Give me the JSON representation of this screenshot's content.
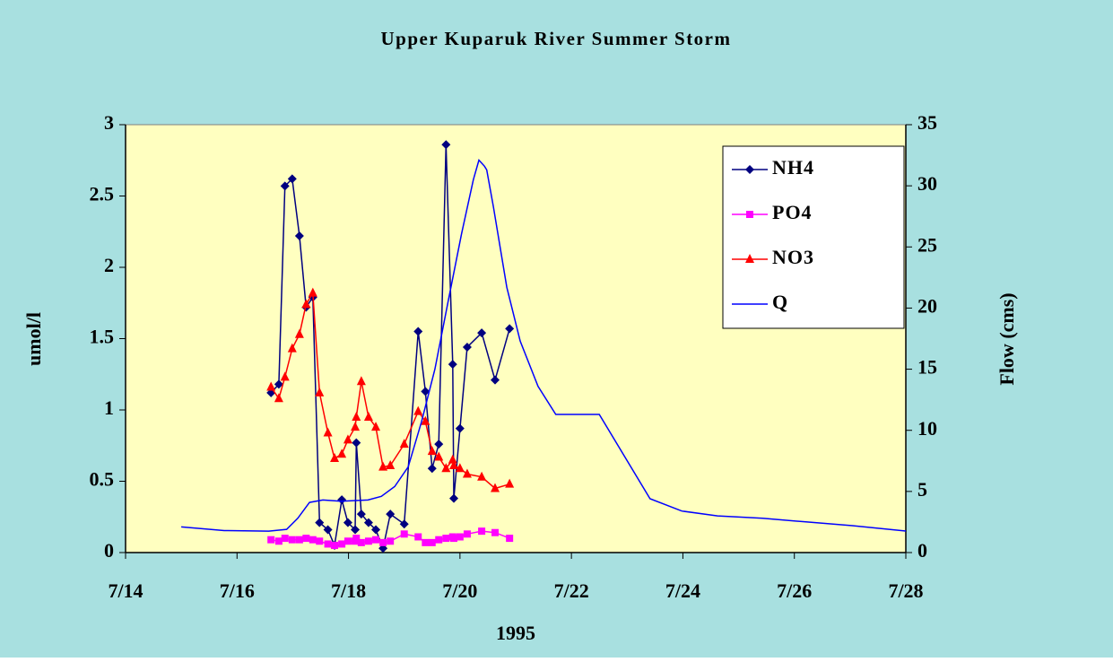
{
  "chart_data": {
    "type": "line",
    "title": "Upper Kuparuk River Summer Storm",
    "xlabel": "1995",
    "ylabel": "umol/l",
    "y2label": "Flow (cms)",
    "xlim": [
      14,
      28
    ],
    "xticks": [
      {
        "value": 14,
        "label": "7/14"
      },
      {
        "value": 16,
        "label": "7/16"
      },
      {
        "value": 18,
        "label": "7/18"
      },
      {
        "value": 20,
        "label": "7/20"
      },
      {
        "value": 22,
        "label": "7/22"
      },
      {
        "value": 24,
        "label": "7/24"
      },
      {
        "value": 26,
        "label": "7/26"
      },
      {
        "value": 28,
        "label": "7/28"
      }
    ],
    "ylim": [
      0,
      3
    ],
    "yticks": [
      0,
      0.5,
      1,
      1.5,
      2,
      2.5,
      3
    ],
    "y2lim": [
      0,
      35
    ],
    "y2ticks": [
      0,
      5,
      10,
      15,
      20,
      25,
      30,
      35
    ],
    "legend": "upper right",
    "background": "#a8e0e0",
    "plot_background": "#ffffc0",
    "series": [
      {
        "name": "NH4",
        "color": "#000080",
        "marker": "diamond",
        "x": [
          16.61,
          16.75,
          16.86,
          16.99,
          17.12,
          17.24,
          17.36,
          17.48,
          17.63,
          17.75,
          17.88,
          17.99,
          18.12,
          18.14,
          18.23,
          18.36,
          18.49,
          18.62,
          18.75,
          19.0,
          19.25,
          19.38,
          19.5,
          19.62,
          19.75,
          19.87,
          19.89,
          20.0,
          20.13,
          20.39,
          20.63,
          20.89
        ],
        "values": [
          1.12,
          1.18,
          2.57,
          2.62,
          2.22,
          1.72,
          1.79,
          0.21,
          0.16,
          0.05,
          0.37,
          0.21,
          0.16,
          0.77,
          0.27,
          0.21,
          0.16,
          0.03,
          0.27,
          0.2,
          1.55,
          1.13,
          0.59,
          0.76,
          2.86,
          1.32,
          0.38,
          0.87,
          1.44,
          1.54,
          1.21,
          1.57
        ]
      },
      {
        "name": "PO4",
        "color": "#ff00ff",
        "marker": "square",
        "x": [
          16.61,
          16.75,
          16.86,
          16.99,
          17.12,
          17.24,
          17.36,
          17.48,
          17.63,
          17.75,
          17.88,
          17.99,
          18.12,
          18.14,
          18.23,
          18.36,
          18.49,
          18.62,
          18.75,
          19.0,
          19.25,
          19.38,
          19.5,
          19.62,
          19.75,
          19.87,
          19.89,
          20.0,
          20.13,
          20.39,
          20.63,
          20.89
        ],
        "values": [
          0.09,
          0.08,
          0.1,
          0.09,
          0.09,
          0.1,
          0.09,
          0.08,
          0.06,
          0.05,
          0.06,
          0.08,
          0.08,
          0.1,
          0.07,
          0.08,
          0.09,
          0.07,
          0.08,
          0.13,
          0.11,
          0.07,
          0.07,
          0.09,
          0.1,
          0.11,
          0.1,
          0.11,
          0.13,
          0.15,
          0.14,
          0.1
        ]
      },
      {
        "name": "NO3",
        "color": "#ff0000",
        "marker": "triangle",
        "x": [
          16.61,
          16.75,
          16.86,
          16.99,
          17.12,
          17.24,
          17.36,
          17.48,
          17.63,
          17.75,
          17.88,
          17.99,
          18.12,
          18.14,
          18.23,
          18.36,
          18.49,
          18.62,
          18.75,
          19.0,
          19.25,
          19.38,
          19.5,
          19.62,
          19.75,
          19.87,
          19.89,
          20.0,
          20.13,
          20.39,
          20.63,
          20.89
        ],
        "values": [
          1.16,
          1.08,
          1.23,
          1.43,
          1.53,
          1.74,
          1.82,
          1.12,
          0.84,
          0.66,
          0.69,
          0.79,
          0.88,
          0.95,
          1.2,
          0.95,
          0.88,
          0.6,
          0.61,
          0.76,
          0.99,
          0.92,
          0.71,
          0.67,
          0.59,
          0.65,
          0.61,
          0.59,
          0.55,
          0.53,
          0.45,
          0.48
        ]
      },
      {
        "name": "Q",
        "color": "#0000ff",
        "axis": "y2",
        "x": [
          15.0,
          15.77,
          16.57,
          16.89,
          17.09,
          17.3,
          17.54,
          17.86,
          18.35,
          18.59,
          18.83,
          19.07,
          19.31,
          19.55,
          19.79,
          20.03,
          20.24,
          20.34,
          20.44,
          20.48,
          20.6,
          20.84,
          21.08,
          21.4,
          21.72,
          22.05,
          22.5,
          23.41,
          23.98,
          24.62,
          25.43,
          26.23,
          27.04,
          28.0
        ],
        "values": [
          2.1,
          1.8,
          1.75,
          1.9,
          2.8,
          4.1,
          4.3,
          4.2,
          4.3,
          4.6,
          5.4,
          7.0,
          10.7,
          15.0,
          20.6,
          26.1,
          30.5,
          32.1,
          31.6,
          31.3,
          28.3,
          21.7,
          17.3,
          13.6,
          11.3,
          11.3,
          11.3,
          4.4,
          3.4,
          3.0,
          2.8,
          2.5,
          2.2,
          1.76
        ]
      }
    ]
  }
}
